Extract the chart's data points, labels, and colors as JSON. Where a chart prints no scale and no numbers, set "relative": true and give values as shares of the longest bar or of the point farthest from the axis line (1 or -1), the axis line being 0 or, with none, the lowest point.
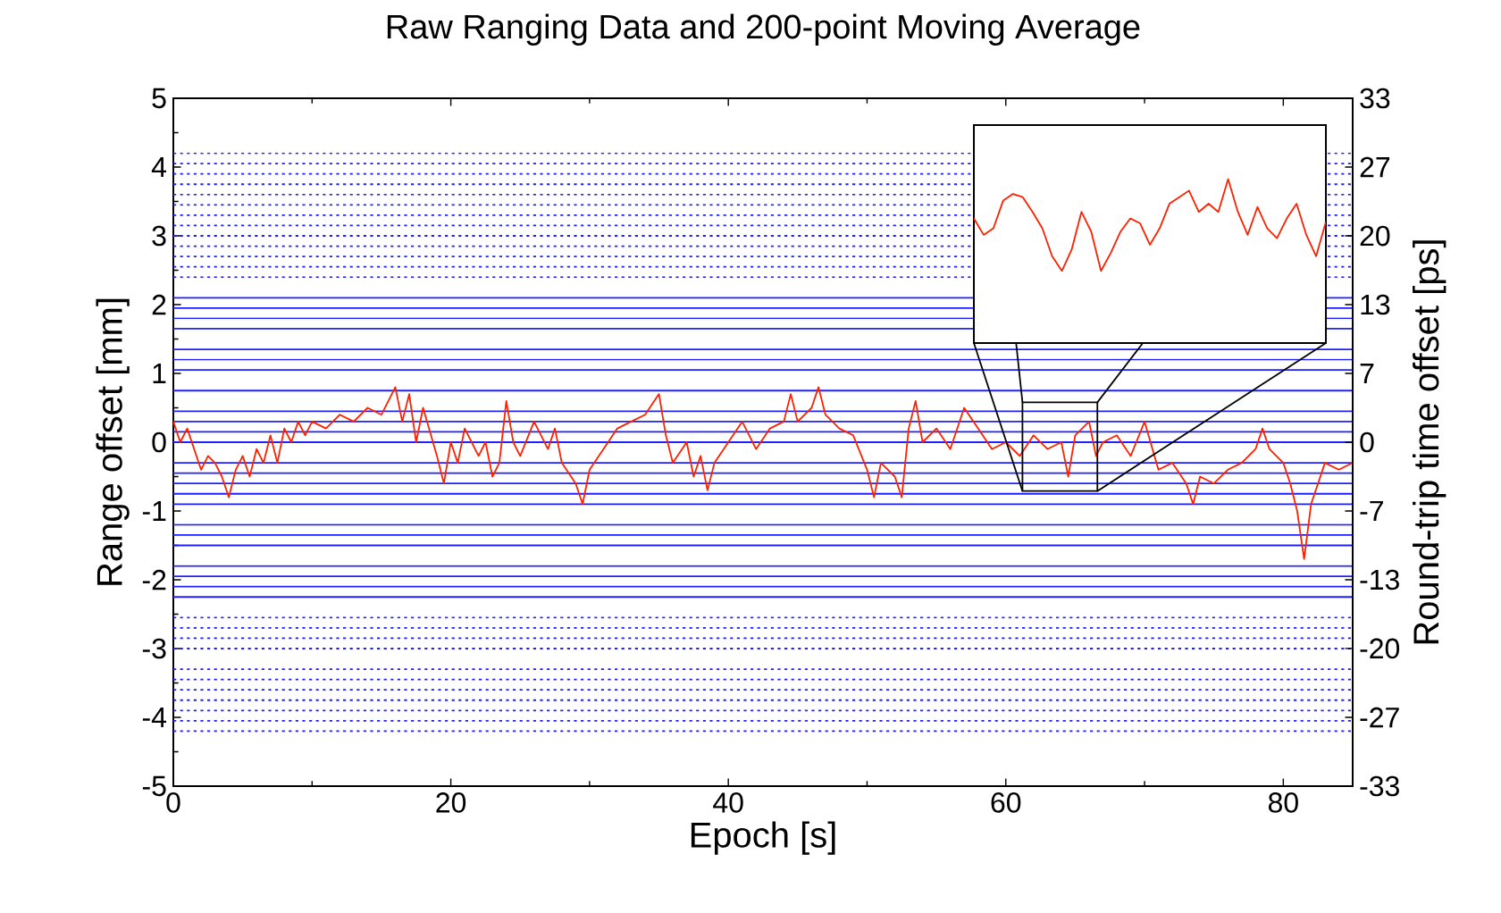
{
  "chart_data": [
    {
      "type": "line",
      "title": "Raw Ranging Data and 200-point Moving Average",
      "xlabel": "Epoch [s]",
      "ylabel": "Range offset [mm]",
      "y2label": "Round-trip time offset [ps]",
      "xlim": [
        0,
        85
      ],
      "xticks": [
        0,
        20,
        40,
        60,
        80
      ],
      "ylim": [
        -5,
        5
      ],
      "yticks": [
        -5,
        -4,
        -3,
        -2,
        -1,
        0,
        1,
        2,
        3,
        4,
        5
      ],
      "y2lim": [
        -33.36,
        33.36
      ],
      "y2ticks": [
        {
          "value": -33.36,
          "label": "-33"
        },
        {
          "value": -26.69,
          "label": "-27"
        },
        {
          "value": -20.01,
          "label": "-20"
        },
        {
          "value": -13.34,
          "label": "-13"
        },
        {
          "value": -6.67,
          "label": "-7"
        },
        {
          "value": 0,
          "label": "0"
        },
        {
          "value": 6.67,
          "label": "7"
        },
        {
          "value": 13.34,
          "label": "13"
        },
        {
          "value": 20.01,
          "label": "20"
        },
        {
          "value": 26.69,
          "label": "27"
        },
        {
          "value": 33.36,
          "label": "33"
        }
      ],
      "grid": false,
      "marker": "none",
      "series": [
        {
          "color": "#2020ff",
          "line_style": "dotted",
          "x": [
            0,
            85
          ],
          "values": [
            4.2,
            4.2
          ]
        },
        {
          "color": "#2020ff",
          "line_style": "dotted",
          "x": [
            0,
            85
          ],
          "values": [
            4.05,
            4.05
          ]
        },
        {
          "color": "#2020ff",
          "line_style": "dotted",
          "x": [
            0,
            85
          ],
          "values": [
            3.9,
            3.9
          ]
        },
        {
          "color": "#2020ff",
          "line_style": "dotted",
          "x": [
            0,
            85
          ],
          "values": [
            3.75,
            3.75
          ]
        },
        {
          "color": "#2020ff",
          "line_style": "dotted",
          "x": [
            0,
            85
          ],
          "values": [
            3.6,
            3.6
          ]
        },
        {
          "color": "#2020ff",
          "line_style": "dotted",
          "x": [
            0,
            85
          ],
          "values": [
            3.45,
            3.45
          ]
        },
        {
          "color": "#2020ff",
          "line_style": "dotted",
          "x": [
            0,
            85
          ],
          "values": [
            3.3,
            3.3
          ]
        },
        {
          "color": "#2020ff",
          "line_style": "dotted",
          "x": [
            0,
            85
          ],
          "values": [
            3.15,
            3.15
          ]
        },
        {
          "color": "#2020ff",
          "line_style": "dotted",
          "x": [
            0,
            85
          ],
          "values": [
            3.0,
            3.0
          ]
        },
        {
          "color": "#2020ff",
          "line_style": "dotted",
          "x": [
            0,
            85
          ],
          "values": [
            2.85,
            2.85
          ]
        },
        {
          "color": "#2020ff",
          "line_style": "dotted",
          "x": [
            0,
            85
          ],
          "values": [
            2.7,
            2.7
          ]
        },
        {
          "color": "#2020ff",
          "line_style": "dotted",
          "x": [
            0,
            85
          ],
          "values": [
            2.55,
            2.55
          ]
        },
        {
          "color": "#2020ff",
          "line_style": "dotted",
          "x": [
            0,
            85
          ],
          "values": [
            2.4,
            2.4
          ]
        },
        {
          "color": "#2020ff",
          "line_style": "solid",
          "x": [
            0,
            85
          ],
          "values": [
            2.1,
            2.1
          ]
        },
        {
          "color": "#2020ff",
          "line_style": "solid",
          "x": [
            0,
            85
          ],
          "values": [
            1.95,
            1.95
          ]
        },
        {
          "color": "#2020ff",
          "line_style": "solid",
          "x": [
            0,
            85
          ],
          "values": [
            1.8,
            1.8
          ]
        },
        {
          "color": "#2020ff",
          "line_style": "solid",
          "x": [
            0,
            85
          ],
          "values": [
            1.65,
            1.65
          ]
        },
        {
          "color": "#2020ff",
          "line_style": "solid",
          "x": [
            0,
            85
          ],
          "values": [
            1.35,
            1.35
          ]
        },
        {
          "color": "#2020ff",
          "line_style": "solid",
          "x": [
            0,
            85
          ],
          "values": [
            1.2,
            1.2
          ]
        },
        {
          "color": "#2020ff",
          "line_style": "solid",
          "x": [
            0,
            85
          ],
          "values": [
            1.05,
            1.05
          ]
        },
        {
          "color": "#2020ff",
          "line_style": "solid",
          "x": [
            0,
            85
          ],
          "values": [
            0.75,
            0.75
          ]
        },
        {
          "color": "#2020ff",
          "line_style": "solid",
          "x": [
            0,
            85
          ],
          "values": [
            0.45,
            0.45
          ]
        },
        {
          "color": "#2020ff",
          "line_style": "solid",
          "x": [
            0,
            85
          ],
          "values": [
            0.3,
            0.3
          ]
        },
        {
          "color": "#2020ff",
          "line_style": "solid",
          "x": [
            0,
            85
          ],
          "values": [
            0.15,
            0.15
          ]
        },
        {
          "color": "#2020ff",
          "line_style": "solid",
          "x": [
            0,
            85
          ],
          "values": [
            0,
            0
          ]
        },
        {
          "color": "#2020ff",
          "line_style": "solid",
          "x": [
            0,
            85
          ],
          "values": [
            -0.3,
            -0.3
          ]
        },
        {
          "color": "#2020ff",
          "line_style": "solid",
          "x": [
            0,
            85
          ],
          "values": [
            -0.45,
            -0.45
          ]
        },
        {
          "color": "#2020ff",
          "line_style": "solid",
          "x": [
            0,
            85
          ],
          "values": [
            -0.6,
            -0.6
          ]
        },
        {
          "color": "#2020ff",
          "line_style": "solid",
          "x": [
            0,
            85
          ],
          "values": [
            -0.75,
            -0.75
          ]
        },
        {
          "color": "#2020ff",
          "line_style": "solid",
          "x": [
            0,
            85
          ],
          "values": [
            -0.9,
            -0.9
          ]
        },
        {
          "color": "#2020ff",
          "line_style": "solid",
          "x": [
            0,
            85
          ],
          "values": [
            -1.2,
            -1.2
          ]
        },
        {
          "color": "#2020ff",
          "line_style": "solid",
          "x": [
            0,
            85
          ],
          "values": [
            -1.35,
            -1.35
          ]
        },
        {
          "color": "#2020ff",
          "line_style": "solid",
          "x": [
            0,
            85
          ],
          "values": [
            -1.5,
            -1.5
          ]
        },
        {
          "color": "#2020ff",
          "line_style": "solid",
          "x": [
            0,
            85
          ],
          "values": [
            -1.8,
            -1.8
          ]
        },
        {
          "color": "#2020ff",
          "line_style": "solid",
          "x": [
            0,
            85
          ],
          "values": [
            -1.95,
            -1.95
          ]
        },
        {
          "color": "#2020ff",
          "line_style": "solid",
          "x": [
            0,
            85
          ],
          "values": [
            -2.1,
            -2.1
          ]
        },
        {
          "color": "#2020ff",
          "line_style": "solid",
          "x": [
            0,
            85
          ],
          "values": [
            -2.25,
            -2.25
          ]
        },
        {
          "color": "#2020ff",
          "line_style": "dotted",
          "x": [
            0,
            85
          ],
          "values": [
            -2.55,
            -2.55
          ]
        },
        {
          "color": "#2020ff",
          "line_style": "dotted",
          "x": [
            0,
            85
          ],
          "values": [
            -2.7,
            -2.7
          ]
        },
        {
          "color": "#2020ff",
          "line_style": "dotted",
          "x": [
            0,
            85
          ],
          "values": [
            -2.85,
            -2.85
          ]
        },
        {
          "color": "#2020ff",
          "line_style": "dotted",
          "x": [
            0,
            85
          ],
          "values": [
            -3.0,
            -3.0
          ]
        },
        {
          "color": "#2020ff",
          "line_style": "dotted",
          "x": [
            0,
            85
          ],
          "values": [
            -3.3,
            -3.3
          ]
        },
        {
          "color": "#2020ff",
          "line_style": "dotted",
          "x": [
            0,
            85
          ],
          "values": [
            -3.45,
            -3.45
          ]
        },
        {
          "color": "#2020ff",
          "line_style": "dotted",
          "x": [
            0,
            85
          ],
          "values": [
            -3.6,
            -3.6
          ]
        },
        {
          "color": "#2020ff",
          "line_style": "dotted",
          "x": [
            0,
            85
          ],
          "values": [
            -3.75,
            -3.75
          ]
        },
        {
          "color": "#2020ff",
          "line_style": "dotted",
          "x": [
            0,
            85
          ],
          "values": [
            -3.9,
            -3.9
          ]
        },
        {
          "color": "#2020ff",
          "line_style": "dotted",
          "x": [
            0,
            85
          ],
          "values": [
            -4.05,
            -4.05
          ]
        },
        {
          "color": "#2020ff",
          "line_style": "dotted",
          "x": [
            0,
            85
          ],
          "values": [
            -4.2,
            -4.2
          ]
        },
        {
          "color": "#ff2000",
          "line_style": "solid",
          "x": [
            0,
            0.5,
            1,
            1.5,
            2,
            2.5,
            3,
            3.5,
            4,
            4.5,
            5,
            5.5,
            6,
            6.5,
            7,
            7.5,
            8,
            8.5,
            9,
            9.5,
            10,
            11,
            12,
            13,
            14,
            15,
            16,
            16.5,
            17,
            17.5,
            18,
            19,
            19.5,
            20,
            20.5,
            21,
            22,
            22.5,
            23,
            23.5,
            24,
            24.5,
            25,
            26,
            27,
            27.5,
            28,
            29,
            29.5,
            30,
            31,
            32,
            33,
            34,
            35,
            35.5,
            36,
            37,
            37.5,
            38,
            38.5,
            39,
            40,
            41,
            42,
            43,
            44,
            44.5,
            45,
            46,
            46.5,
            47,
            48,
            49,
            50,
            50.5,
            51,
            52,
            52.5,
            53,
            53.5,
            54,
            55,
            56,
            57,
            58,
            59,
            60,
            61,
            62,
            63,
            64,
            64.5,
            65,
            66,
            66.5,
            67,
            68,
            69,
            70,
            71,
            72,
            73,
            73.5,
            74,
            75,
            76,
            77,
            78,
            78.5,
            79,
            80,
            80.5,
            81,
            81.5,
            82,
            82.5,
            83,
            84,
            85
          ],
          "values": [
            0.3,
            0.0,
            0.2,
            -0.1,
            -0.4,
            -0.2,
            -0.3,
            -0.5,
            -0.8,
            -0.4,
            -0.2,
            -0.5,
            -0.1,
            -0.3,
            0.1,
            -0.3,
            0.2,
            0.0,
            0.3,
            0.1,
            0.3,
            0.2,
            0.4,
            0.3,
            0.5,
            0.4,
            0.8,
            0.3,
            0.7,
            0.0,
            0.5,
            -0.2,
            -0.6,
            0.0,
            -0.3,
            0.2,
            -0.2,
            0.0,
            -0.5,
            -0.3,
            0.6,
            0.0,
            -0.2,
            0.3,
            -0.1,
            0.2,
            -0.3,
            -0.6,
            -0.9,
            -0.4,
            -0.1,
            0.2,
            0.3,
            0.4,
            0.7,
            0.1,
            -0.3,
            0.0,
            -0.5,
            -0.2,
            -0.7,
            -0.3,
            0.0,
            0.3,
            -0.1,
            0.2,
            0.3,
            0.7,
            0.3,
            0.5,
            0.8,
            0.4,
            0.2,
            0.1,
            -0.4,
            -0.8,
            -0.3,
            -0.5,
            -0.8,
            0.2,
            0.6,
            0.0,
            0.2,
            -0.1,
            0.5,
            0.2,
            -0.1,
            0.0,
            -0.2,
            0.1,
            -0.1,
            0.0,
            -0.5,
            0.1,
            0.3,
            -0.2,
            0.0,
            0.1,
            -0.2,
            0.3,
            -0.4,
            -0.3,
            -0.6,
            -0.9,
            -0.5,
            -0.6,
            -0.4,
            -0.3,
            -0.1,
            0.2,
            -0.1,
            -0.3,
            -0.6,
            -1.0,
            -1.7,
            -0.9,
            -0.6,
            -0.3,
            -0.4,
            -0.3
          ]
        }
      ]
    },
    {
      "type": "line",
      "relative": true,
      "marker": "none",
      "categories": [
        null,
        null,
        null,
        null,
        null,
        null,
        null,
        null,
        null,
        null,
        null,
        null,
        null,
        null,
        null,
        null,
        null,
        null,
        null,
        null,
        null,
        null,
        null,
        null,
        null,
        null,
        null,
        null,
        null,
        null,
        null,
        null,
        null,
        null,
        null,
        null,
        null
      ],
      "series": [
        {
          "color": "#ff2000",
          "values": [
            0.76,
            0.66,
            0.7,
            0.87,
            0.91,
            0.89,
            0.8,
            0.7,
            0.53,
            0.44,
            0.57,
            0.8,
            0.68,
            0.44,
            0.55,
            0.68,
            0.76,
            0.73,
            0.6,
            0.7,
            0.85,
            0.89,
            0.93,
            0.8,
            0.85,
            0.8,
            1,
            0.8,
            0.66,
            0.83,
            0.7,
            0.64,
            0.76,
            0.85,
            0.66,
            0.53,
            0.74
          ]
        }
      ]
    }
  ]
}
